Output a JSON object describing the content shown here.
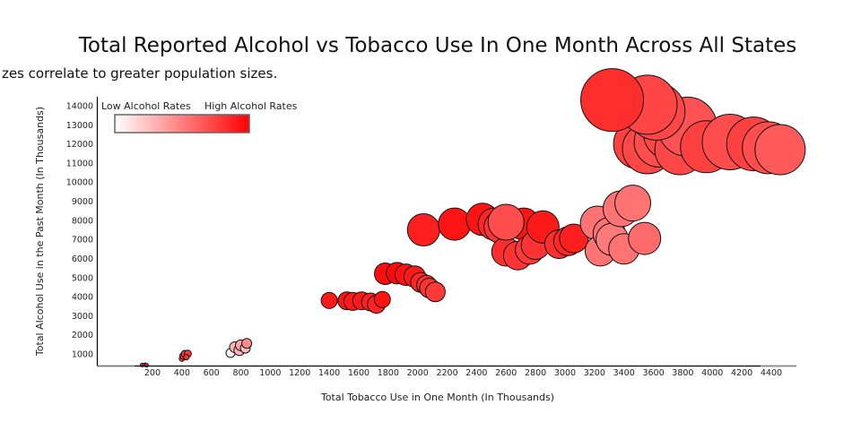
{
  "chart_data": {
    "type": "scatter",
    "title": "Total Reported Alcohol vs Tobacco Use In One Month Across All States",
    "subtitle": "zes correlate to greater population sizes.",
    "xlabel": "Total Tobacco Use in One Month (In Thousands)",
    "ylabel": "Total Alcohol Use in the Past Month (In Thousands)",
    "xlim": [
      -175,
      4550
    ],
    "ylim": [
      375,
      14300
    ],
    "x_ticks": [
      "200",
      "400",
      "600",
      "800",
      "1000",
      "1200",
      "1400",
      "1600",
      "1800",
      "2000",
      "2200",
      "2400",
      "2600",
      "2800",
      "3000",
      "3200",
      "3400",
      "3600",
      "3800",
      "4000",
      "4200",
      "4400"
    ],
    "x_tick_values": [
      200,
      400,
      600,
      800,
      1000,
      1200,
      1400,
      1600,
      1800,
      2000,
      2200,
      2400,
      2600,
      2800,
      3000,
      3200,
      3400,
      3600,
      3800,
      4000,
      4200,
      4400
    ],
    "y_ticks": [
      "1000",
      "2000",
      "3000",
      "4000",
      "5000",
      "6000",
      "7000",
      "8000",
      "9000",
      "10000",
      "11000",
      "12000",
      "13000",
      "14000"
    ],
    "y_tick_values": [
      1000,
      2000,
      3000,
      4000,
      5000,
      6000,
      7000,
      8000,
      9000,
      10000,
      11000,
      12000,
      13000,
      14000
    ],
    "grid": false,
    "legend": {
      "placement": "top-left",
      "low_label": "Low Alcohol Rates",
      "high_label": "High Alcohol Rates",
      "low_color": "#ffffff",
      "high_color": "#ff0000"
    },
    "marker_edge_color": "#111111",
    "points": [
      {
        "x": 130,
        "y": 420,
        "size": 4,
        "rate": 0.8
      },
      {
        "x": 150,
        "y": 430,
        "size": 4,
        "rate": 0.75
      },
      {
        "x": 160,
        "y": 410,
        "size": 4,
        "rate": 0.8
      },
      {
        "x": 400,
        "y": 750,
        "size": 6,
        "rate": 0.75
      },
      {
        "x": 410,
        "y": 900,
        "size": 8,
        "rate": 0.8
      },
      {
        "x": 420,
        "y": 1000,
        "size": 8,
        "rate": 0.78
      },
      {
        "x": 440,
        "y": 1010,
        "size": 8,
        "rate": 0.8
      },
      {
        "x": 430,
        "y": 830,
        "size": 6,
        "rate": 0.82
      },
      {
        "x": 730,
        "y": 1050,
        "size": 10,
        "rate": 0.0
      },
      {
        "x": 760,
        "y": 1350,
        "size": 12,
        "rate": 0.3
      },
      {
        "x": 790,
        "y": 1200,
        "size": 12,
        "rate": 0.3
      },
      {
        "x": 800,
        "y": 1450,
        "size": 12,
        "rate": 0.35
      },
      {
        "x": 830,
        "y": 1300,
        "size": 11,
        "rate": 0.25
      },
      {
        "x": 840,
        "y": 1550,
        "size": 11,
        "rate": 0.45
      },
      {
        "x": 1400,
        "y": 3800,
        "size": 18,
        "rate": 0.9
      },
      {
        "x": 1520,
        "y": 3780,
        "size": 20,
        "rate": 0.92
      },
      {
        "x": 1560,
        "y": 3750,
        "size": 20,
        "rate": 0.9
      },
      {
        "x": 1620,
        "y": 3780,
        "size": 20,
        "rate": 0.9
      },
      {
        "x": 1680,
        "y": 3720,
        "size": 20,
        "rate": 0.88
      },
      {
        "x": 1720,
        "y": 3600,
        "size": 20,
        "rate": 0.86
      },
      {
        "x": 1760,
        "y": 3850,
        "size": 18,
        "rate": 0.92
      },
      {
        "x": 1780,
        "y": 5200,
        "size": 24,
        "rate": 0.95
      },
      {
        "x": 1860,
        "y": 5230,
        "size": 24,
        "rate": 0.96
      },
      {
        "x": 1920,
        "y": 5150,
        "size": 24,
        "rate": 0.93
      },
      {
        "x": 1980,
        "y": 5050,
        "size": 24,
        "rate": 0.9
      },
      {
        "x": 2020,
        "y": 4750,
        "size": 22,
        "rate": 0.85
      },
      {
        "x": 2060,
        "y": 4600,
        "size": 22,
        "rate": 0.82
      },
      {
        "x": 2080,
        "y": 4450,
        "size": 22,
        "rate": 0.8
      },
      {
        "x": 2120,
        "y": 4250,
        "size": 22,
        "rate": 0.78
      },
      {
        "x": 2040,
        "y": 7500,
        "size": 36,
        "rate": 0.88
      },
      {
        "x": 2250,
        "y": 7800,
        "size": 36,
        "rate": 0.92
      },
      {
        "x": 2440,
        "y": 8050,
        "size": 36,
        "rate": 0.92
      },
      {
        "x": 2520,
        "y": 7800,
        "size": 36,
        "rate": 0.85
      },
      {
        "x": 2560,
        "y": 7650,
        "size": 36,
        "rate": 0.8
      },
      {
        "x": 2600,
        "y": 6350,
        "size": 32,
        "rate": 0.82
      },
      {
        "x": 2680,
        "y": 6150,
        "size": 32,
        "rate": 0.8
      },
      {
        "x": 2720,
        "y": 7800,
        "size": 36,
        "rate": 0.92
      },
      {
        "x": 2760,
        "y": 6450,
        "size": 32,
        "rate": 0.78
      },
      {
        "x": 2800,
        "y": 6700,
        "size": 32,
        "rate": 0.8
      },
      {
        "x": 2850,
        "y": 7650,
        "size": 36,
        "rate": 0.9
      },
      {
        "x": 2960,
        "y": 6750,
        "size": 32,
        "rate": 0.82
      },
      {
        "x": 3020,
        "y": 6900,
        "size": 32,
        "rate": 0.85
      },
      {
        "x": 3060,
        "y": 7050,
        "size": 32,
        "rate": 0.88
      },
      {
        "x": 2600,
        "y": 7900,
        "size": 40,
        "rate": 0.7
      },
      {
        "x": 3220,
        "y": 7850,
        "size": 38,
        "rate": 0.55
      },
      {
        "x": 3240,
        "y": 6400,
        "size": 34,
        "rate": 0.55
      },
      {
        "x": 3300,
        "y": 7300,
        "size": 36,
        "rate": 0.55
      },
      {
        "x": 3320,
        "y": 7000,
        "size": 36,
        "rate": 0.52
      },
      {
        "x": 3380,
        "y": 8600,
        "size": 40,
        "rate": 0.55
      },
      {
        "x": 3400,
        "y": 6500,
        "size": 34,
        "rate": 0.55
      },
      {
        "x": 3460,
        "y": 8900,
        "size": 40,
        "rate": 0.55
      },
      {
        "x": 3540,
        "y": 7050,
        "size": 36,
        "rate": 0.58
      },
      {
        "x": 3500,
        "y": 12000,
        "size": 56,
        "rate": 0.75
      },
      {
        "x": 3560,
        "y": 11750,
        "size": 56,
        "rate": 0.72
      },
      {
        "x": 3640,
        "y": 12100,
        "size": 56,
        "rate": 0.7
      },
      {
        "x": 3720,
        "y": 12600,
        "size": 62,
        "rate": 0.72
      },
      {
        "x": 3780,
        "y": 11700,
        "size": 56,
        "rate": 0.72
      },
      {
        "x": 3830,
        "y": 12900,
        "size": 66,
        "rate": 0.68
      },
      {
        "x": 3960,
        "y": 11850,
        "size": 58,
        "rate": 0.75
      },
      {
        "x": 4120,
        "y": 12100,
        "size": 62,
        "rate": 0.7
      },
      {
        "x": 4280,
        "y": 12000,
        "size": 60,
        "rate": 0.75
      },
      {
        "x": 4380,
        "y": 11800,
        "size": 58,
        "rate": 0.7
      },
      {
        "x": 4460,
        "y": 11700,
        "size": 56,
        "rate": 0.65
      },
      {
        "x": 3620,
        "y": 13700,
        "size": 64,
        "rate": 0.72
      },
      {
        "x": 3560,
        "y": 14050,
        "size": 66,
        "rate": 0.73
      },
      {
        "x": 3320,
        "y": 14300,
        "size": 70,
        "rate": 0.82
      }
    ]
  }
}
